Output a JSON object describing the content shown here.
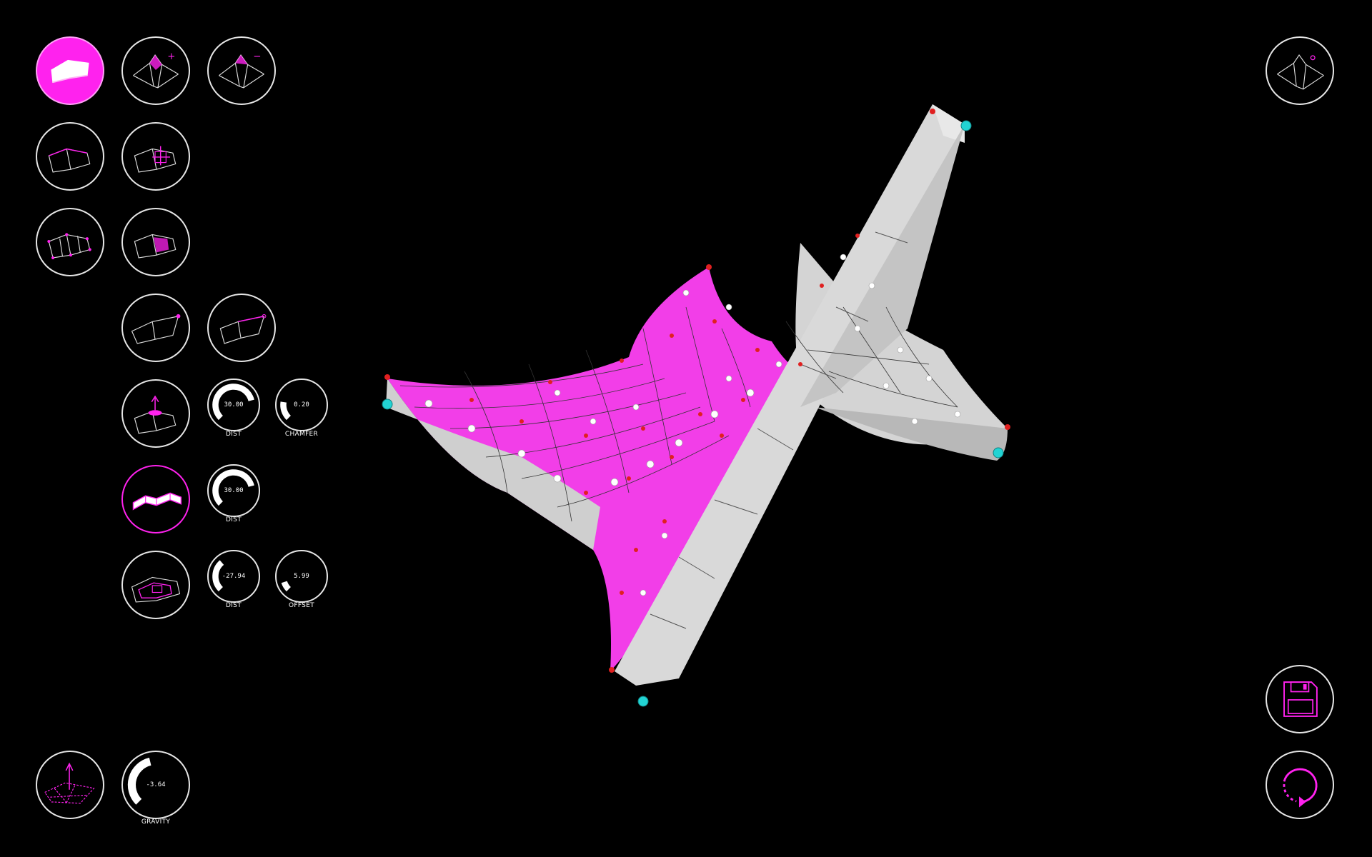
{
  "theme": {
    "background": "#000000",
    "accent": "#ff22ee",
    "outline": "#e6e6e6",
    "anchor": "#22d3d3",
    "node": "#e02020",
    "surface_light": "#d9d9d9"
  },
  "tools": {
    "surface_mode": {
      "icon": "surface-panel-icon",
      "state": "active"
    },
    "add_subdivision": {
      "icon": "mesh-plus-icon",
      "symbol": "+"
    },
    "remove_subdivision": {
      "icon": "mesh-minus-icon",
      "symbol": "−"
    },
    "edge_select": {
      "icon": "mesh-edge-icon"
    },
    "move_point": {
      "icon": "mesh-move-icon"
    },
    "node_select": {
      "icon": "mesh-node-icon"
    },
    "face_select": {
      "icon": "mesh-face-icon"
    },
    "pin_corner": {
      "icon": "mesh-pin-icon"
    },
    "cable_edge": {
      "icon": "mesh-cable-icon"
    },
    "extrude_panel": {
      "icon": "mesh-extrude-icon"
    },
    "thicken": {
      "icon": "mesh-thicken-icon",
      "state": "active"
    },
    "inset": {
      "icon": "mesh-inset-icon"
    },
    "gravity": {
      "icon": "mesh-gravity-icon"
    },
    "view_3d": {
      "icon": "mesh-view-icon"
    },
    "save": {
      "icon": "floppy-disk-icon"
    },
    "reset": {
      "icon": "refresh-icon"
    }
  },
  "dials": {
    "extrude_dist": {
      "value": "30.00",
      "label": "DIST",
      "fraction": 0.78
    },
    "extrude_chamfer": {
      "value": "0.20",
      "label": "CHAMFER",
      "fraction": 0.2
    },
    "thicken_dist": {
      "value": "30.00",
      "label": "DIST",
      "fraction": 0.78
    },
    "inset_dist": {
      "value": "-27.94",
      "label": "DIST",
      "fraction": 0.35
    },
    "inset_offset": {
      "value": "5.99",
      "label": "OFFSET",
      "fraction": 0.1
    },
    "gravity": {
      "value": "-3.64",
      "label": "GRAVITY",
      "fraction": 0.45
    }
  }
}
